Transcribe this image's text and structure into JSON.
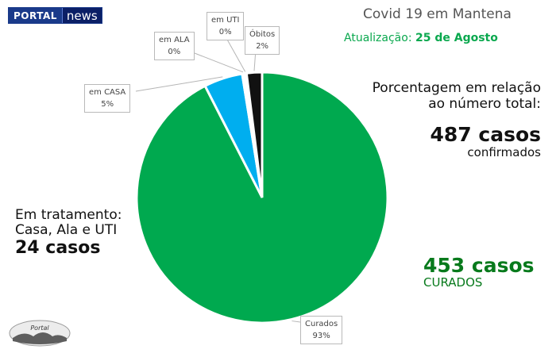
{
  "header": {
    "logo_left": "PORTAL",
    "logo_right": "news",
    "title": "Covid 19 em Mantena",
    "update_label": "Atualização:",
    "update_date": "25 de Agosto"
  },
  "info": {
    "pct_line1": "Porcentagem em relação",
    "pct_line2": "ao número total:",
    "total_cases": "487 casos",
    "total_sub": "confirmados",
    "treatment_line1": "Em tratamento:",
    "treatment_line2": "Casa, Ala e UTI",
    "treatment_cases": "24 casos",
    "cured_cases": "453 casos",
    "cured_sub": "CURADOS"
  },
  "footer": {
    "logo_text": "Portal"
  },
  "chart_data": {
    "type": "pie",
    "title": "Covid 19 em Mantena",
    "slices": [
      {
        "label": "Curados",
        "value": 93,
        "display": "93%",
        "color": "#00a94f"
      },
      {
        "label": "em CASA",
        "value": 5,
        "display": "5%",
        "color": "#00aeef"
      },
      {
        "label": "em ALA",
        "value": 0,
        "display": "0%",
        "color": "#f2f2f2"
      },
      {
        "label": "em UTI",
        "value": 0,
        "display": "0%",
        "color": "#e6e6e6"
      },
      {
        "label": "Óbitos",
        "value": 2,
        "display": "2%",
        "color": "#111111"
      }
    ]
  }
}
